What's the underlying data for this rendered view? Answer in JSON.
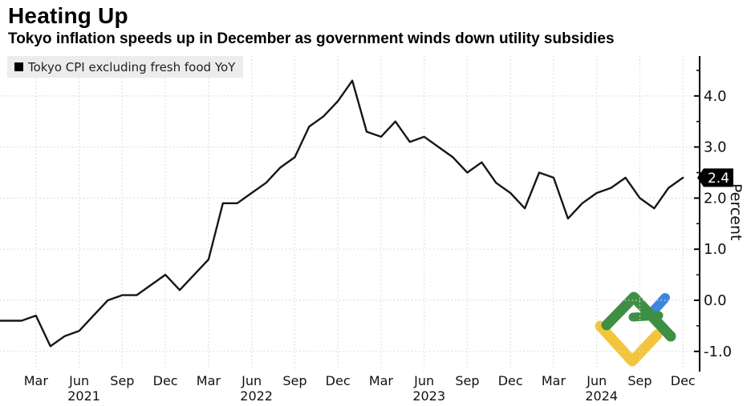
{
  "header": {
    "title": "Heating Up",
    "subtitle": "Tokyo inflation speeds up in December as government winds down utility subsidies"
  },
  "legend": {
    "label": "Tokyo CPI excluding fresh food YoY",
    "swatch_color": "#000000",
    "background_color": "#ececec"
  },
  "y_axis": {
    "unit_label": "Percent",
    "major_ticks": [
      {
        "value": 4.0,
        "label": "4.0"
      },
      {
        "value": 3.0,
        "label": "3.0"
      },
      {
        "value": 2.0,
        "label": "2.0"
      },
      {
        "value": 1.0,
        "label": "1.0"
      },
      {
        "value": 0.0,
        "label": "0.0"
      },
      {
        "value": -1.0,
        "label": "-1.0"
      }
    ],
    "minor_tick_values": [
      4.5,
      3.5,
      2.5,
      1.5,
      0.5,
      -0.5
    ],
    "current_value_badge": {
      "text": "2.4",
      "background": "#000000",
      "text_color": "#ffffff"
    }
  },
  "x_axis": {
    "quarter_labels": [
      "Mar",
      "Jun",
      "Sep",
      "Dec"
    ],
    "year_labels": [
      "2021",
      "2022",
      "2023",
      "2024"
    ]
  },
  "chart_data": {
    "type": "line",
    "title": "Heating Up",
    "subtitle": "Tokyo inflation speeds up in December as government winds down utility subsidies",
    "series_name": "Tokyo CPI excluding fresh food YoY",
    "x_start": "Jan 2021",
    "x_end": "Dec 2024",
    "x_interval": "monthly",
    "ylabel": "Percent",
    "ylim": [
      -1.5,
      4.6
    ],
    "grid": "dotted",
    "legend_position": "top-left",
    "line_color": "#161616",
    "values": [
      -0.4,
      -0.4,
      -0.3,
      -0.9,
      -0.7,
      -0.6,
      -0.3,
      0.0,
      0.1,
      0.1,
      0.3,
      0.5,
      0.2,
      0.5,
      0.8,
      1.9,
      1.9,
      2.1,
      2.3,
      2.6,
      2.8,
      3.4,
      3.6,
      3.9,
      4.3,
      3.3,
      3.2,
      3.5,
      3.1,
      3.2,
      3.0,
      2.8,
      2.5,
      2.7,
      2.3,
      2.1,
      1.8,
      2.5,
      2.4,
      1.6,
      1.9,
      2.1,
      2.2,
      2.4,
      2.0,
      1.8,
      2.2,
      2.4
    ],
    "last_value_label": "2.4"
  },
  "logo": {
    "name": "broker-watermark-logo",
    "colors": {
      "green": "#3E8F44",
      "yellow": "#F3C53D",
      "blue": "#3C86E0"
    }
  },
  "style": {
    "grid_color": "#d8d8d8",
    "axis_color": "#000000",
    "label_color": "#111111"
  }
}
